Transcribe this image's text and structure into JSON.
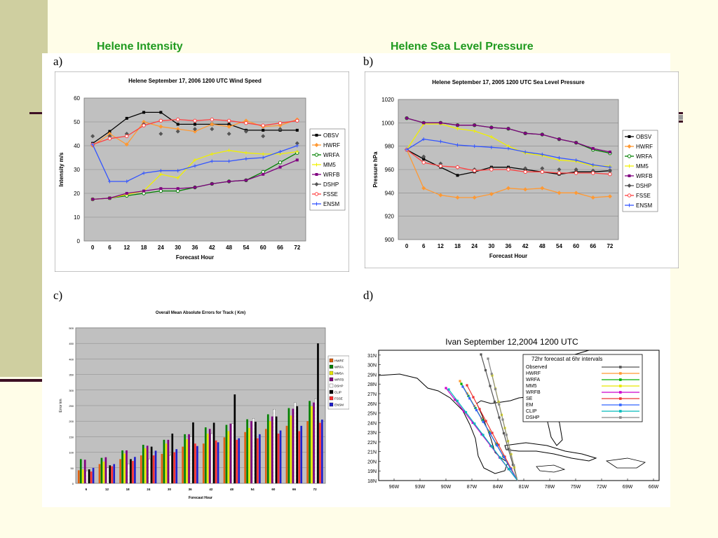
{
  "slide": {
    "title_left": "Helene Intensity",
    "title_right": "Helene Sea Level Pressure"
  },
  "panels": {
    "a": "a)",
    "b": "b)",
    "c": "c)",
    "d": "d)"
  },
  "colors": {
    "OBSV": "#000000",
    "HWRF": "#ff9933",
    "WRFA": "#008000",
    "MM5": "#f0f000",
    "WRFB": "#800080",
    "DSHP": "#555555",
    "FSSE": "#ff4040",
    "ENSM": "#3355ff",
    "CLIP": "#111111",
    "plot_bg": "#c0c0c0"
  },
  "chart_data": [
    {
      "type": "line",
      "title": "Helene September 17, 2006 1200 UTC Wind Speed",
      "xlabel": "Forecast Hour",
      "ylabel": "Intensity m/s",
      "x": [
        0,
        6,
        12,
        18,
        24,
        30,
        36,
        42,
        48,
        54,
        60,
        66,
        72
      ],
      "xticks": [
        "0",
        "6",
        "12",
        "18",
        "24",
        "30",
        "36",
        "42",
        "48",
        "54",
        "60",
        "66",
        "72"
      ],
      "ylim": [
        0,
        60
      ],
      "yticks": [
        "0",
        "10",
        "20",
        "30",
        "40",
        "50",
        "60"
      ],
      "grid": true,
      "legend": "right",
      "series": [
        {
          "name": "OBSV",
          "values": [
            41,
            46,
            51.5,
            54,
            54,
            49,
            49,
            49,
            49,
            46.5,
            46.5,
            46.5,
            46.5
          ]
        },
        {
          "name": "HWRF",
          "values": [
            40,
            45,
            40.5,
            50,
            48,
            47,
            46,
            49,
            48,
            50.5,
            48,
            48.5,
            51
          ]
        },
        {
          "name": "WRFA",
          "values": [
            17.5,
            18,
            19,
            20,
            21,
            21,
            22.5,
            24,
            25,
            25.5,
            29,
            33,
            37
          ]
        },
        {
          "name": "MM5",
          "values": [
            17.5,
            18,
            19.5,
            21,
            28,
            26.5,
            34,
            36.5,
            38,
            37,
            36.5,
            36.5,
            37.5
          ]
        },
        {
          "name": "WRFB",
          "values": [
            17.5,
            18,
            20,
            21,
            22,
            22,
            22.5,
            24,
            25,
            25.5,
            28,
            31,
            34
          ]
        },
        {
          "name": "DSHP",
          "values": [
            44,
            44,
            45,
            49,
            45,
            46,
            47,
            47,
            45,
            46,
            44,
            47,
            41
          ]
        },
        {
          "name": "FSSE",
          "values": [
            40.5,
            43,
            44,
            48.5,
            50.5,
            51,
            50.5,
            51,
            50.5,
            49.5,
            48.5,
            49.5,
            50.5
          ]
        },
        {
          "name": "ENSM",
          "values": [
            40.5,
            25,
            25,
            28.5,
            29.5,
            29.5,
            31.5,
            33.5,
            33.5,
            34.5,
            35,
            37.5,
            40
          ]
        }
      ]
    },
    {
      "type": "line",
      "title": "Helene September 17, 2005 1200 UTC Sea Level Pressure",
      "xlabel": "Forecast Hour",
      "ylabel": "Pressure hPa",
      "x": [
        0,
        6,
        12,
        18,
        24,
        30,
        36,
        42,
        48,
        54,
        60,
        66,
        72
      ],
      "xticks": [
        "0",
        "6",
        "12",
        "18",
        "24",
        "30",
        "36",
        "42",
        "48",
        "54",
        "60",
        "66",
        "72"
      ],
      "ylim": [
        900,
        1020
      ],
      "yticks": [
        "900",
        "920",
        "940",
        "960",
        "980",
        "1000",
        "1020"
      ],
      "grid": true,
      "legend": "right",
      "series": [
        {
          "name": "OBSV",
          "values": [
            977,
            969,
            962,
            955,
            958,
            962,
            962,
            960,
            958,
            956,
            958,
            958,
            959
          ]
        },
        {
          "name": "HWRF",
          "values": [
            977,
            944,
            938,
            936,
            936,
            939,
            944,
            943,
            944,
            940,
            940,
            936,
            937
          ]
        },
        {
          "name": "WRFA",
          "values": [
            1004,
            1000,
            1000,
            998,
            998,
            996,
            995,
            991,
            990,
            986,
            983,
            977,
            974
          ]
        },
        {
          "name": "MM5",
          "values": [
            977,
            999,
            999,
            995,
            993,
            988,
            980,
            974,
            972,
            968,
            967,
            963,
            963
          ]
        },
        {
          "name": "WRFB",
          "values": [
            1004,
            1000,
            1000,
            998,
            998,
            996,
            995,
            991,
            990,
            986,
            983,
            978,
            975
          ]
        },
        {
          "name": "DSHP",
          "values": [
            977,
            971,
            965,
            962,
            960,
            961,
            961,
            961,
            961,
            960,
            960,
            959,
            959
          ]
        },
        {
          "name": "FSSE",
          "values": [
            977,
            966,
            963,
            962,
            959,
            960,
            960,
            958,
            958,
            957,
            957,
            957,
            956
          ]
        },
        {
          "name": "ENSM",
          "values": [
            977,
            986,
            984,
            981,
            980,
            979,
            978,
            975,
            973,
            970,
            968,
            964,
            962
          ]
        }
      ]
    },
    {
      "type": "bar",
      "title": "Overall Mean Absolute Errors for Track ( Km)",
      "xlabel": "Forecast Hour",
      "ylabel": "Error km",
      "categories": [
        "6",
        "12",
        "18",
        "24",
        "30",
        "36",
        "42",
        "48",
        "54",
        "60",
        "66",
        "72"
      ],
      "ylim": [
        0,
        500
      ],
      "yticks": [
        "0",
        "50",
        "100",
        "150",
        "200",
        "250",
        "300",
        "350",
        "400",
        "450",
        "500"
      ],
      "grid": true,
      "legend": "right",
      "series": [
        {
          "name": "HWRF",
          "values": [
            42,
            62,
            78,
            90,
            95,
            118,
            128,
            148,
            165,
            175,
            185,
            200
          ]
        },
        {
          "name": "WRFA",
          "values": [
            78,
            82,
            106,
            124,
            140,
            158,
            180,
            188,
            206,
            222,
            242,
            265
          ]
        },
        {
          "name": "MM5A",
          "values": [
            45,
            70,
            96,
            113,
            128,
            142,
            160,
            168,
            178,
            200,
            218,
            248
          ]
        },
        {
          "name": "WRFB",
          "values": [
            76,
            84,
            106,
            121,
            140,
            158,
            175,
            192,
            200,
            215,
            240,
            260
          ]
        },
        {
          "name": "DSHP",
          "values": [
            40,
            50,
            62,
            78,
            90,
            150,
            160,
            192,
            208,
            238,
            260,
            272
          ]
        },
        {
          "name": "CLIP",
          "values": [
            45,
            58,
            78,
            118,
            160,
            196,
            195,
            286,
            198,
            215,
            248,
            450
          ]
        },
        {
          "name": "FSSE",
          "values": [
            38,
            55,
            72,
            90,
            100,
            128,
            138,
            140,
            145,
            160,
            168,
            195
          ]
        },
        {
          "name": "ENSM",
          "values": [
            50,
            62,
            85,
            105,
            110,
            120,
            132,
            145,
            158,
            170,
            185,
            205
          ]
        }
      ]
    }
  ],
  "map": {
    "title": "Ivan September 12,2004 1200 UTC",
    "legend_title": "72hr forecast at 6hr intervals",
    "lat_labels": [
      "18N",
      "19N",
      "20N",
      "21N",
      "22N",
      "23N",
      "24N",
      "25N",
      "26N",
      "27N",
      "28N",
      "29N",
      "30N",
      "31N"
    ],
    "lon_labels": [
      "96W",
      "93W",
      "90W",
      "87W",
      "84W",
      "81W",
      "78W",
      "75W",
      "72W",
      "69W",
      "66W"
    ],
    "tracks": [
      {
        "name": "Observed",
        "color": "#555555"
      },
      {
        "name": "HWRF",
        "color": "#ff9933"
      },
      {
        "name": "WRFA",
        "color": "#00b000"
      },
      {
        "name": "MM5",
        "color": "#e8e800"
      },
      {
        "name": "WRFB",
        "color": "#cc00cc"
      },
      {
        "name": "SE",
        "color": "#ee3333"
      },
      {
        "name": "EM",
        "color": "#3366ff"
      },
      {
        "name": "CLIP",
        "color": "#00bbbb"
      },
      {
        "name": "DSHP",
        "color": "#888888"
      }
    ]
  }
}
